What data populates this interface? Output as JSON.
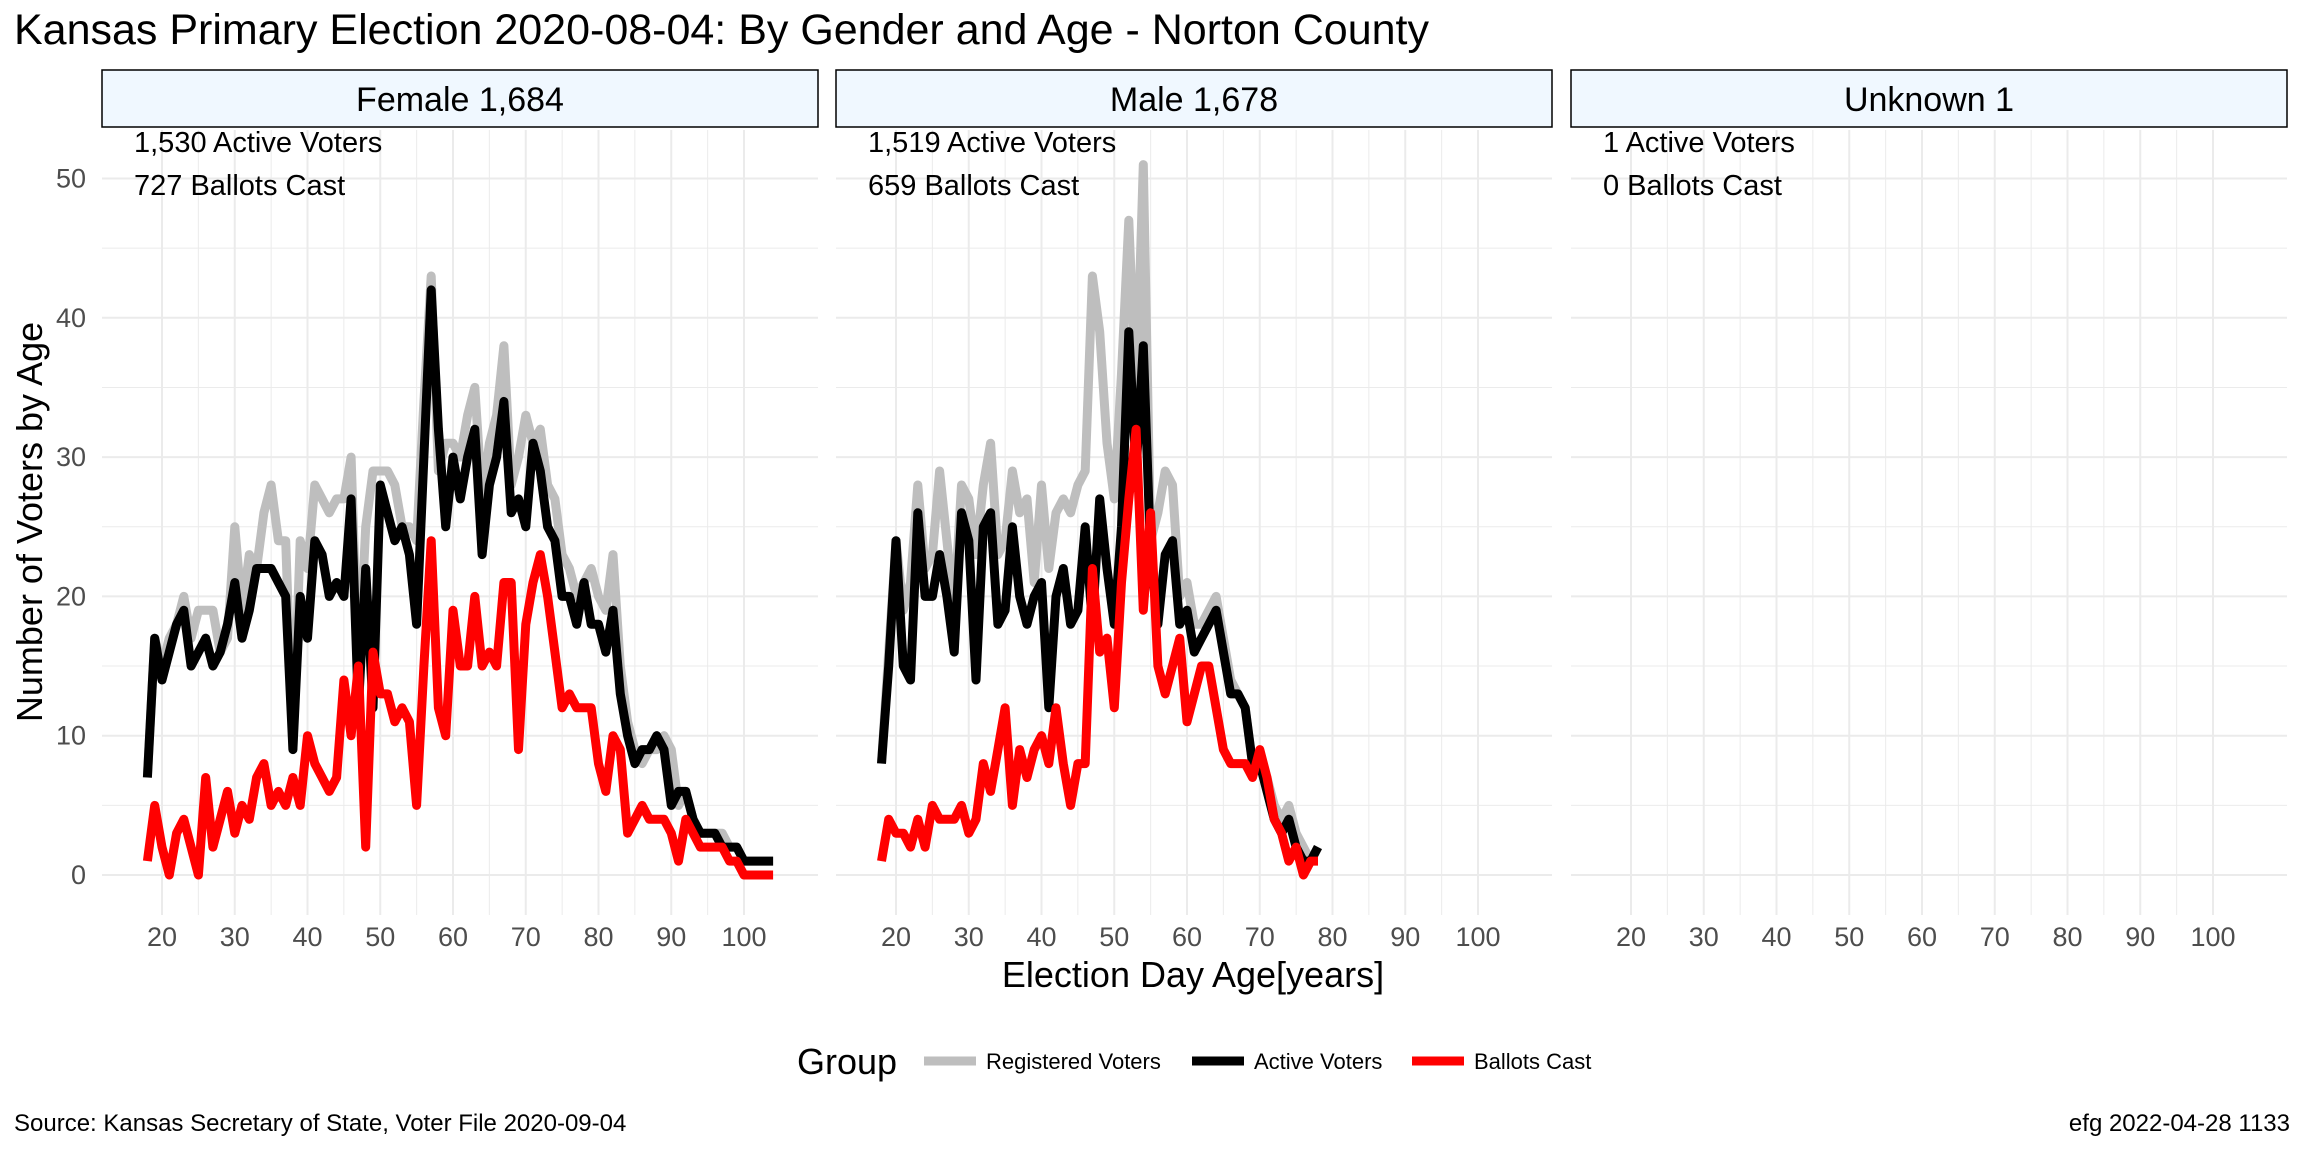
{
  "title": "Kansas Primary Election 2020-08-04:  By Gender and Age - Norton County",
  "source": "Source:  Kansas Secretary of State, Voter File  2020-09-04",
  "stamp": "efg 2022-04-28 1133",
  "chart_data": {
    "type": "line",
    "title": "Kansas Primary Election 2020-08-04:  By Gender and Age - Norton County",
    "xlabel": "Election Day Age[years]",
    "ylabel": "Number of Voters by Age",
    "xlim": [
      18,
      105
    ],
    "ylim": [
      0,
      51
    ],
    "x_ticks": [
      20,
      30,
      40,
      50,
      60,
      70,
      80,
      90,
      100
    ],
    "y_ticks": [
      0,
      10,
      20,
      30,
      40,
      50
    ],
    "grid": true,
    "legend": {
      "title": "Group",
      "placement": "bottom",
      "entries": [
        {
          "name": "Registered Voters",
          "color": "#bebebe"
        },
        {
          "name": "Active Voters",
          "color": "#000000"
        },
        {
          "name": "Ballots Cast",
          "color": "#ff0000"
        }
      ]
    },
    "panels": [
      {
        "label": "Female 1,684",
        "annotations": [
          "1,530 Active Voters",
          "727 Ballots Cast"
        ],
        "series": [
          {
            "name": "Registered Voters",
            "color": "#bebebe",
            "x_start": 18,
            "values": [
              7,
              17,
              15,
              17,
              18,
              20,
              17,
              19,
              19,
              19,
              16,
              17,
              25,
              19,
              23,
              22,
              26,
              28,
              24,
              24,
              9,
              24,
              22,
              28,
              27,
              26,
              27,
              27,
              30,
              14,
              25,
              29,
              29,
              29,
              28,
              25,
              25,
              24,
              34,
              43,
              29,
              31,
              31,
              30,
              33,
              35,
              27,
              31,
              33,
              38,
              28,
              30,
              33,
              31,
              32,
              28,
              27,
              23,
              22,
              20,
              21,
              22,
              20,
              19,
              23,
              15,
              11,
              9,
              8,
              9,
              9,
              10,
              9,
              5,
              6,
              4,
              3,
              3,
              3,
              3,
              2,
              2,
              1,
              1,
              1,
              1,
              1
            ]
          },
          {
            "name": "Active Voters",
            "color": "#000000",
            "x_start": 18,
            "values": [
              7,
              17,
              14,
              16,
              18,
              19,
              15,
              16,
              17,
              15,
              16,
              18,
              21,
              17,
              19,
              22,
              22,
              22,
              21,
              20,
              9,
              20,
              17,
              24,
              23,
              20,
              21,
              20,
              27,
              12,
              22,
              12,
              28,
              26,
              24,
              25,
              23,
              18,
              30,
              42,
              32,
              25,
              30,
              27,
              30,
              32,
              23,
              28,
              30,
              34,
              26,
              27,
              25,
              31,
              29,
              25,
              24,
              20,
              20,
              18,
              21,
              18,
              18,
              16,
              19,
              13,
              10,
              8,
              9,
              9,
              10,
              9,
              5,
              6,
              6,
              4,
              3,
              3,
              3,
              2,
              2,
              2,
              1,
              1,
              1,
              1,
              1
            ]
          },
          {
            "name": "Ballots Cast",
            "color": "#ff0000",
            "x_start": 18,
            "values": [
              1,
              5,
              2,
              0,
              3,
              4,
              2,
              0,
              7,
              2,
              4,
              6,
              3,
              5,
              4,
              7,
              8,
              5,
              6,
              5,
              7,
              5,
              10,
              8,
              7,
              6,
              7,
              14,
              10,
              15,
              2,
              16,
              13,
              13,
              11,
              12,
              11,
              5,
              15,
              24,
              12,
              10,
              19,
              15,
              15,
              20,
              15,
              16,
              15,
              21,
              21,
              9,
              18,
              21,
              23,
              20,
              16,
              12,
              13,
              12,
              12,
              12,
              8,
              6,
              10,
              9,
              3,
              4,
              5,
              4,
              4,
              4,
              3,
              1,
              4,
              3,
              2,
              2,
              2,
              2,
              1,
              1,
              0,
              0,
              0,
              0,
              0
            ]
          }
        ]
      },
      {
        "label": "Male 1,678",
        "annotations": [
          "1,519 Active Voters",
          "659 Ballots Cast"
        ],
        "series": [
          {
            "name": "Registered Voters",
            "color": "#bebebe",
            "x_start": 18,
            "values": [
              8,
              16,
              24,
              19,
              21,
              28,
              22,
              23,
              29,
              24,
              19,
              28,
              27,
              23,
              28,
              31,
              23,
              24,
              29,
              26,
              27,
              21,
              28,
              22,
              26,
              27,
              26,
              28,
              29,
              43,
              39,
              31,
              27,
              36,
              47,
              34,
              51,
              24,
              26,
              29,
              28,
              20,
              21,
              18,
              18,
              19,
              20,
              17,
              14,
              13,
              12,
              8,
              8,
              7,
              5,
              4,
              5,
              3,
              2,
              1,
              2
            ]
          },
          {
            "name": "Active Voters",
            "color": "#000000",
            "x_start": 18,
            "values": [
              8,
              15,
              24,
              15,
              14,
              26,
              20,
              20,
              23,
              20,
              16,
              26,
              24,
              14,
              25,
              26,
              18,
              19,
              25,
              20,
              18,
              20,
              21,
              12,
              20,
              22,
              18,
              19,
              25,
              18,
              27,
              22,
              18,
              25,
              39,
              29,
              38,
              23,
              18,
              23,
              24,
              18,
              19,
              16,
              17,
              18,
              19,
              16,
              13,
              13,
              12,
              8,
              8,
              6,
              4,
              3,
              4,
              2,
              1,
              1,
              2
            ]
          },
          {
            "name": "Ballots Cast",
            "color": "#ff0000",
            "x_start": 18,
            "values": [
              1,
              4,
              3,
              3,
              2,
              4,
              2,
              5,
              4,
              4,
              4,
              5,
              3,
              4,
              8,
              6,
              9,
              12,
              5,
              9,
              7,
              9,
              10,
              8,
              12,
              8,
              5,
              8,
              8,
              22,
              16,
              17,
              12,
              21,
              27,
              32,
              19,
              26,
              15,
              13,
              15,
              17,
              11,
              13,
              15,
              15,
              12,
              9,
              8,
              8,
              8,
              7,
              9,
              7,
              4,
              3,
              1,
              2,
              0,
              1,
              1
            ]
          }
        ]
      },
      {
        "label": "Unknown 1",
        "annotations": [
          "1 Active Voters",
          "0 Ballots Cast"
        ],
        "series": []
      }
    ]
  }
}
